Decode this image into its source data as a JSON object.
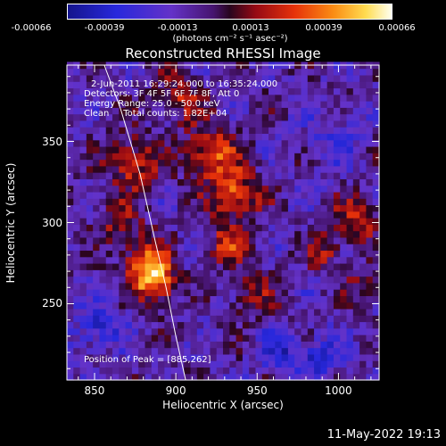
{
  "chart_data": {
    "type": "heatmap",
    "title": "Reconstructed RHESSI Image",
    "xlabel": "Heliocentric X (arcsec)",
    "ylabel": "Heliocentric Y (arcsec)",
    "xlim": [
      833,
      1025
    ],
    "ylim": [
      203,
      397
    ],
    "xticks": [
      "850",
      "900",
      "950",
      "1000"
    ],
    "yticks": [
      "250",
      "300",
      "350"
    ],
    "colorbar": {
      "ticks": [
        "-0.00066",
        "-0.00039",
        "-0.00013",
        "0.00013",
        "0.00039",
        "0.00066"
      ],
      "unit": "(photons cm⁻² s⁻¹ asec⁻²)",
      "range": [
        -0.00066,
        0.00066
      ]
    },
    "annotations": [
      "2-Jun-2011 16:29:24.000 to 16:35:24.000",
      "Detectors: 3F 4F 5F 6F 7F 8F, Att 0",
      "Energy Range: 25.0 - 50.0 keV",
      "Clean     Total counts: 1.82E+04"
    ],
    "peak_label": "Position of Peak = [885,262]",
    "peak": [
      885,
      262
    ],
    "limb_curve": [
      [
        906,
        203
      ],
      [
        900,
        230
      ],
      [
        894,
        260
      ],
      [
        887,
        290
      ],
      [
        878,
        330
      ],
      [
        866,
        370
      ],
      [
        856,
        397
      ]
    ],
    "bright_sources": [
      {
        "x": 885,
        "y": 262,
        "sigma": 9,
        "amp": 0.00066
      },
      {
        "x": 878,
        "y": 278,
        "sigma": 10,
        "amp": 0.00038
      },
      {
        "x": 872,
        "y": 335,
        "sigma": 11,
        "amp": 0.00042
      },
      {
        "x": 862,
        "y": 300,
        "sigma": 9,
        "amp": 0.0003
      },
      {
        "x": 920,
        "y": 340,
        "sigma": 12,
        "amp": 0.00045
      },
      {
        "x": 935,
        "y": 315,
        "sigma": 10,
        "amp": 0.0005
      },
      {
        "x": 930,
        "y": 285,
        "sigma": 9,
        "amp": 0.00035
      },
      {
        "x": 945,
        "y": 255,
        "sigma": 10,
        "amp": 0.00028
      },
      {
        "x": 1010,
        "y": 300,
        "sigma": 9,
        "amp": 0.0004
      },
      {
        "x": 990,
        "y": 280,
        "sigma": 8,
        "amp": 0.0003
      },
      {
        "x": 1015,
        "y": 260,
        "sigma": 7,
        "amp": 0.00025
      },
      {
        "x": 900,
        "y": 375,
        "sigma": 10,
        "amp": 0.0003
      },
      {
        "x": 960,
        "y": 220,
        "sigma": 8,
        "amp": -0.0003
      },
      {
        "x": 985,
        "y": 215,
        "sigma": 9,
        "amp": -0.00035
      },
      {
        "x": 850,
        "y": 235,
        "sigma": 10,
        "amp": -0.0003
      },
      {
        "x": 995,
        "y": 350,
        "sigma": 11,
        "amp": -0.0002
      }
    ]
  },
  "timestamp": "11-May-2022 19:13"
}
